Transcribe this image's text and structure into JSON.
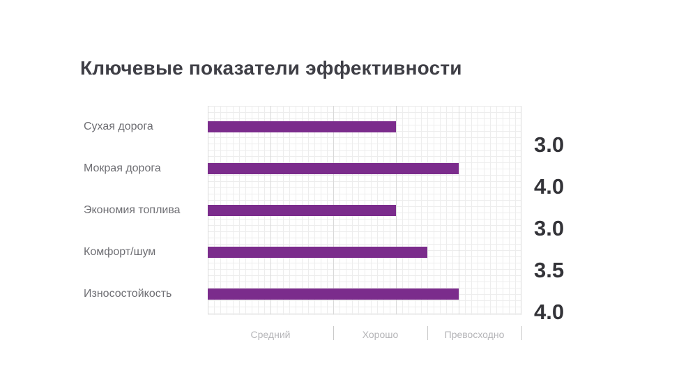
{
  "title": "Ключевые показатели эффективности",
  "chart_data": {
    "type": "bar",
    "orientation": "horizontal",
    "title": "Ключевые показатели эффективности",
    "categories": [
      "Сухая дорога",
      "Мокрая дорога",
      "Экономия топлива",
      "Комфорт/шум",
      "Износостойкость"
    ],
    "values": [
      3.0,
      4.0,
      3.0,
      3.5,
      4.0
    ],
    "value_labels": [
      "3.0",
      "4.0",
      "3.0",
      "3.5",
      "4.0"
    ],
    "xlim": [
      0,
      5
    ],
    "x_axis_zones": [
      {
        "label": "Средний",
        "start": 0,
        "end": 2
      },
      {
        "label": "Хорошо",
        "start": 2,
        "end": 3.5
      },
      {
        "label": "Превосходно",
        "start": 3.5,
        "end": 5
      }
    ],
    "grid": true,
    "legend": false,
    "bar_color": "#7b2c8c"
  },
  "colors": {
    "bar": "#7b2c8c",
    "title_text": "#3f3f46",
    "category_text": "#6e6e73",
    "value_text": "#333338",
    "axis_text": "#b5b5b8",
    "grid_minor": "#ededed",
    "grid_major": "#d9d9d9",
    "background": "#ffffff"
  }
}
